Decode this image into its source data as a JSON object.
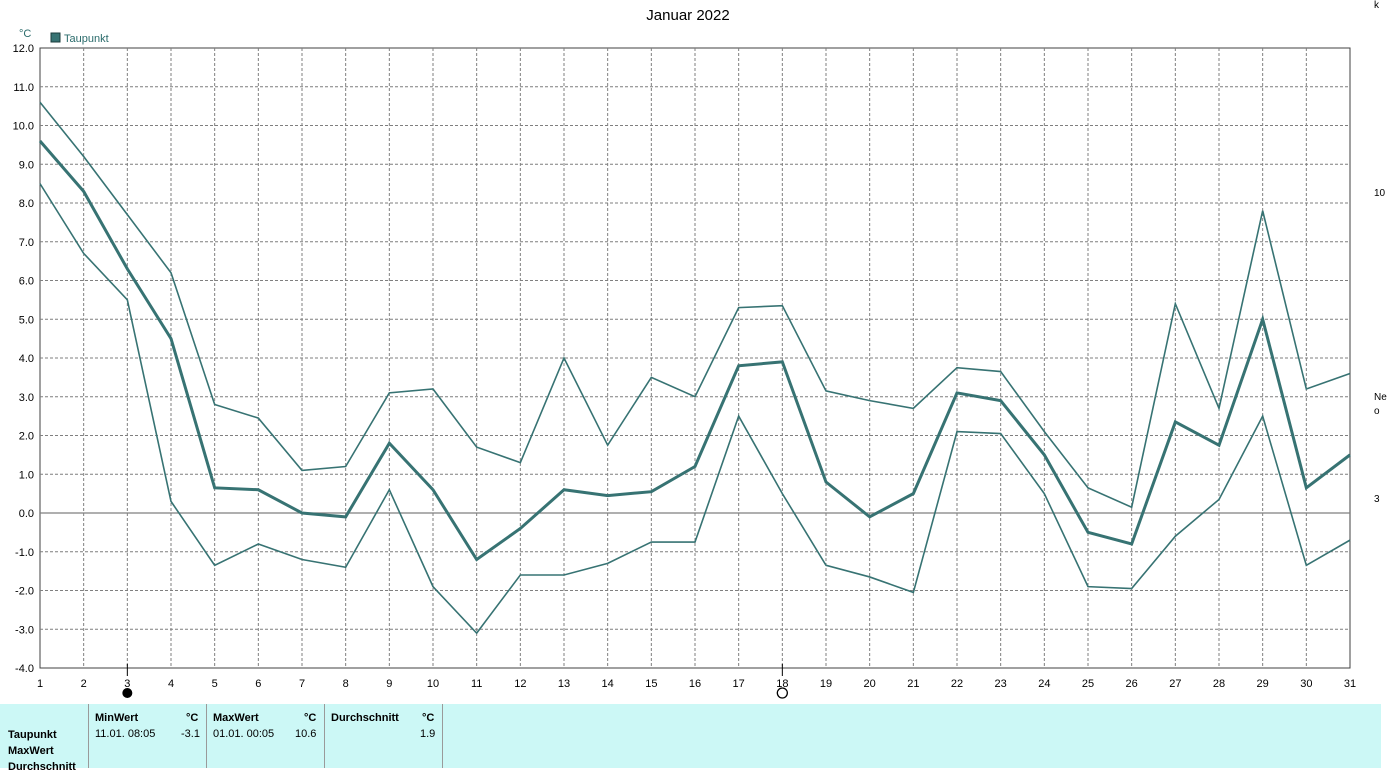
{
  "chart_data": {
    "type": "line",
    "title": "Januar 2022",
    "ylabel": "°C",
    "x": [
      1,
      2,
      3,
      4,
      5,
      6,
      7,
      8,
      9,
      10,
      11,
      12,
      13,
      14,
      15,
      16,
      17,
      18,
      19,
      20,
      21,
      22,
      23,
      24,
      25,
      26,
      27,
      28,
      29,
      30,
      31
    ],
    "xlim": [
      1,
      31
    ],
    "ylim": [
      -4.0,
      12.0
    ],
    "yticks": [
      "12.0",
      "11.0",
      "10.0",
      "9.0",
      "8.0",
      "7.0",
      "6.0",
      "5.0",
      "4.0",
      "3.0",
      "2.0",
      "1.0",
      "0.0",
      "-1.0",
      "-2.0",
      "-3.0",
      "-4.0"
    ],
    "xticks": [
      "1",
      "2",
      "3",
      "4",
      "5",
      "6",
      "7",
      "8",
      "9",
      "10",
      "11",
      "12",
      "13",
      "14",
      "15",
      "16",
      "17",
      "18",
      "19",
      "20",
      "21",
      "22",
      "23",
      "24",
      "25",
      "26",
      "27",
      "28",
      "29",
      "30",
      "31"
    ],
    "grid": true,
    "legend_position": "top-left",
    "legend": [
      "Taupunkt"
    ],
    "series": [
      {
        "name": "Taupunkt",
        "role": "mean",
        "values": [
          9.6,
          8.3,
          6.3,
          4.5,
          0.65,
          0.6,
          0.0,
          -0.1,
          1.8,
          0.6,
          -1.2,
          -0.4,
          0.6,
          0.45,
          0.55,
          1.2,
          3.8,
          3.9,
          0.8,
          -0.1,
          0.5,
          3.1,
          2.9,
          1.5,
          -0.5,
          -0.8,
          2.35,
          1.75,
          5.0,
          0.65,
          1.5
        ]
      },
      {
        "role": "max",
        "values": [
          10.6,
          9.2,
          7.7,
          6.2,
          2.8,
          2.45,
          1.1,
          1.2,
          3.1,
          3.2,
          1.7,
          1.3,
          4.0,
          1.75,
          3.5,
          3.0,
          5.3,
          5.35,
          3.15,
          2.9,
          2.7,
          3.75,
          3.65,
          2.1,
          0.65,
          0.15,
          5.4,
          2.7,
          7.8,
          3.2,
          3.6
        ]
      },
      {
        "role": "min",
        "values": [
          8.5,
          6.7,
          5.5,
          0.3,
          -1.35,
          -0.8,
          -1.2,
          -1.4,
          0.6,
          -1.9,
          -3.1,
          -1.6,
          -1.6,
          -1.3,
          -0.75,
          -0.75,
          2.5,
          0.5,
          -1.35,
          -1.65,
          -2.05,
          2.1,
          2.05,
          0.5,
          -1.9,
          -1.95,
          -0.6,
          0.35,
          2.5,
          -1.35,
          -0.7
        ]
      }
    ],
    "moon_phases": [
      {
        "day": 3,
        "phase": "new-moon"
      },
      {
        "day": 18,
        "phase": "full-moon"
      }
    ]
  },
  "colors": {
    "series": "#377373",
    "axis_text": "#2a6b6b",
    "grid": "#7f7f7f",
    "panel_bg": "#ccf8f6"
  },
  "icons": [
    "legend-swatch-icon",
    "new-moon-icon",
    "full-moon-icon"
  ],
  "stats": {
    "row_labels": [
      "Taupunkt",
      "MaxWert",
      "Durchschnitt"
    ],
    "columns": [
      {
        "header": "MinWert",
        "unit": "°C",
        "datetime": "11.01.  08:05",
        "value": "-3.1"
      },
      {
        "header": "MaxWert",
        "unit": "°C",
        "datetime": "01.01.  00:05",
        "value": "10.6"
      },
      {
        "header": "Durchschnitt",
        "unit": "°C",
        "datetime": "",
        "value": "1.9"
      }
    ]
  },
  "side_fragments": [
    "k",
    "10",
    "Ne",
    "o",
    "3"
  ]
}
